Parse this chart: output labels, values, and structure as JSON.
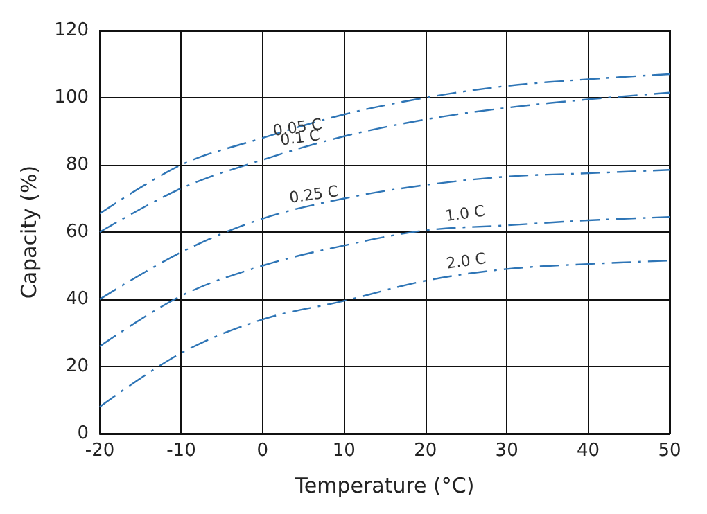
{
  "chart_data": {
    "type": "line",
    "xlabel": "Temperature (°C)",
    "ylabel": "Capacity (%)",
    "x": [
      -20,
      -10,
      0,
      10,
      20,
      30,
      40,
      50
    ],
    "series": [
      {
        "name": "0.05 C",
        "color": "#2e75b6",
        "values": [
          65.5,
          80,
          88,
          95,
          100,
          103.5,
          105.5,
          107
        ]
      },
      {
        "name": "0.1 C",
        "color": "#2e75b6",
        "values": [
          60,
          73,
          81.5,
          88.5,
          93.5,
          97,
          99.5,
          101.5
        ]
      },
      {
        "name": "0.25 C",
        "color": "#2e75b6",
        "values": [
          40,
          54,
          64,
          70,
          74,
          76.5,
          77.5,
          78.5
        ]
      },
      {
        "name": "1.0 C",
        "color": "#2e75b6",
        "values": [
          26,
          41,
          50,
          56,
          60.5,
          62,
          63.5,
          64.5
        ]
      },
      {
        "name": "2.0 C",
        "color": "#2e75b6",
        "values": [
          8,
          24,
          34,
          39.5,
          45.5,
          49,
          50.5,
          51.5
        ]
      }
    ],
    "xlim": [
      -20,
      50
    ],
    "xticks": [
      -20,
      -10,
      0,
      10,
      20,
      30,
      40,
      50
    ],
    "ylim": [
      0,
      120
    ],
    "yticks": [
      0,
      20,
      40,
      60,
      80,
      100,
      120
    ],
    "grid": true,
    "legend": false,
    "marker": "none",
    "line_style": "dashed"
  }
}
